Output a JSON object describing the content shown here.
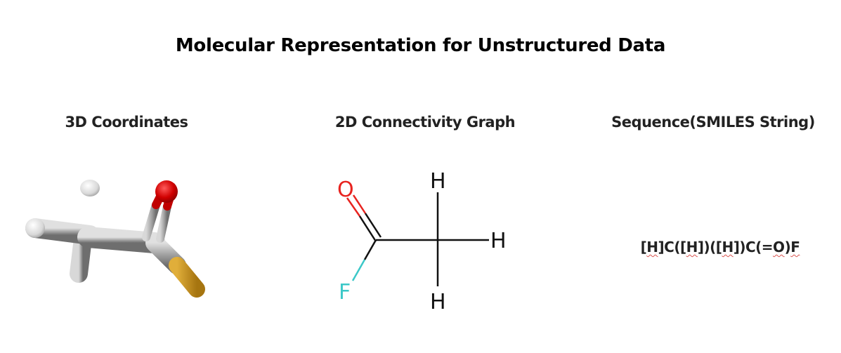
{
  "title": "Molecular Representation for Unstructured Data",
  "columns": {
    "coords3d": {
      "heading": "3D Coordinates"
    },
    "graph2d": {
      "heading": "2D Connectivity Graph",
      "atoms": {
        "oxygen": "O",
        "fluorine": "F",
        "hydrogen_top": "H",
        "hydrogen_right": "H",
        "hydrogen_bottom": "H"
      }
    },
    "sequence": {
      "heading": "Sequence(SMILES String)",
      "smiles_parts": [
        "[",
        "H",
        "]C([",
        "H",
        "])([",
        "H",
        "])C(=",
        "O",
        ")",
        "F"
      ]
    }
  },
  "colors": {
    "oxygen": "#e8231f",
    "fluorine": "#3cc8c8",
    "carbon_bond": "#111111",
    "sulfur_stick": "#c9951a",
    "gray_stick": "#9a9a9a",
    "spellcheck": "#d9534f"
  },
  "icons": {
    "molecule_3d": "ball-and-stick-molecule-icon"
  }
}
